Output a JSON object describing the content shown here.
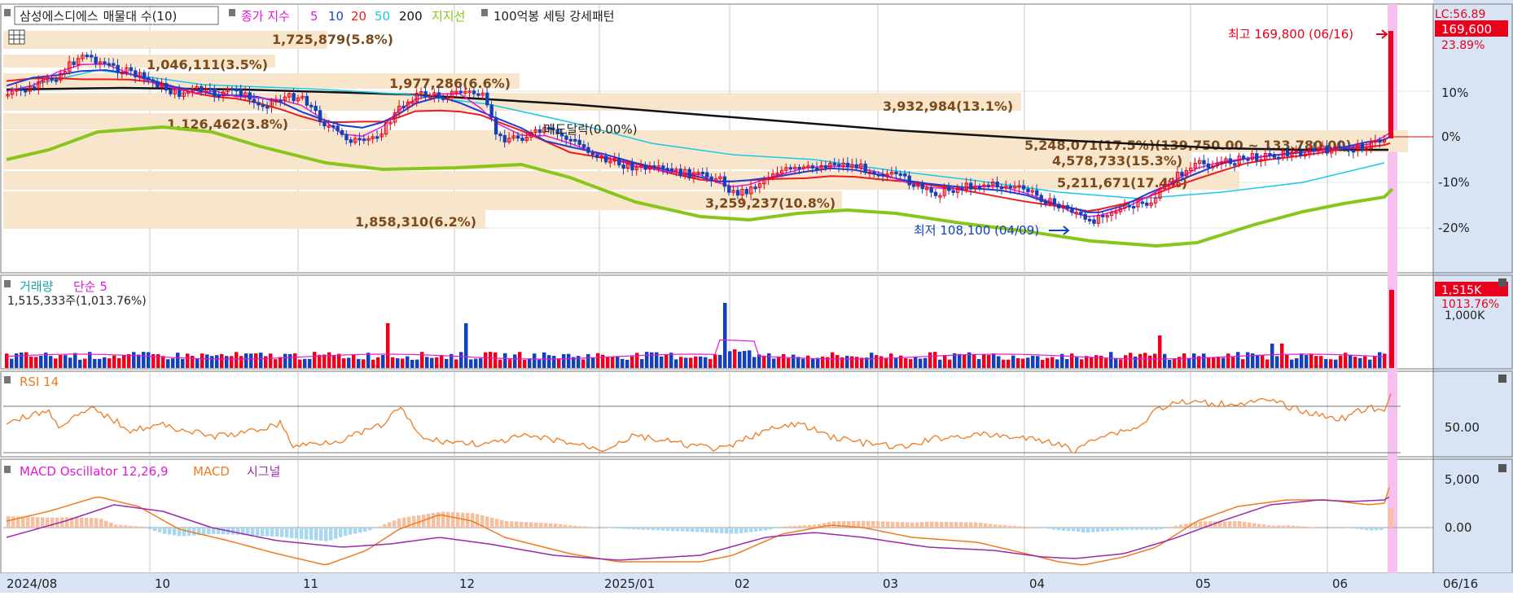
{
  "header": {
    "stock_name": "삼성에스디에스",
    "vp_label": "매물대 수(10)",
    "close_label": "종가 지수",
    "ma_periods": [
      "5",
      "10",
      "20",
      "50",
      "200"
    ],
    "support_label": "지지선",
    "extra_label": "100억봉 세팅 강세패턴",
    "lc_label": "LC:56.89",
    "price_badge": "169,600",
    "pct_label": "23.89%"
  },
  "colors": {
    "up": "#e8001c",
    "down": "#1440b8",
    "ma5": "#e01ad8",
    "ma10": "#1c3fd0",
    "ma20": "#ee1c1c",
    "ma50": "#18c8e8",
    "ma200": "#111111",
    "support": "#88c61c",
    "volume_profile": "#f8e6cc",
    "highlight": "#f5c2f0",
    "rsi": "#f07a20",
    "macd": "#f07a20",
    "signal": "#9a2aa8",
    "osc_pos": "#f6c0a0",
    "osc_neg": "#a8d8f0",
    "axis_bg": "#d8e4f4"
  },
  "annotations": {
    "high": "최고 169,800 (06/16)",
    "low": "최저 108,100 (04/09)",
    "bid_note": "매도달락(0.00%)"
  },
  "volume_panel": {
    "title": "거래량",
    "ma_label": "단순 5",
    "info": "1,515,333주(1,013.76%)",
    "badge": "1,515K",
    "badge_sub": "1013.76%",
    "axis_label": "1,000K"
  },
  "rsi_panel": {
    "title": "RSI 14",
    "axis_label": "50.00"
  },
  "macd_panel": {
    "title_osc": "MACD Oscillator 12,26,9",
    "title_macd": "MACD",
    "title_signal": "시그널",
    "axis_labels": [
      "5,000",
      "0.00"
    ]
  },
  "chart_data": {
    "type": "candlestick",
    "price_axis_labels": [
      "10%",
      "0%",
      "-10%",
      "-20%"
    ],
    "x_labels": [
      "2024/08",
      "10",
      "11",
      "12",
      "2025/01",
      "02",
      "03",
      "04",
      "05",
      "06",
      "06/16"
    ],
    "volume_profile": [
      {
        "label": "1,725,879(5.8%)"
      },
      {
        "label": "1,046,111(3.5%)"
      },
      {
        "label": "1,977,286(6.6%)"
      },
      {
        "label": "3,932,984(13.1%)"
      },
      {
        "label": "1,126,462(3.8%)"
      },
      {
        "label": "5,248,071(17.5%)(139,750.00 ~ 133,780.00)"
      },
      {
        "label": "4,578,733(15.3%)"
      },
      {
        "label": "5,211,671(17.4%)"
      },
      {
        "label": "3,259,237(10.8%)"
      },
      {
        "label": "1,858,310(6.2%)"
      }
    ]
  }
}
